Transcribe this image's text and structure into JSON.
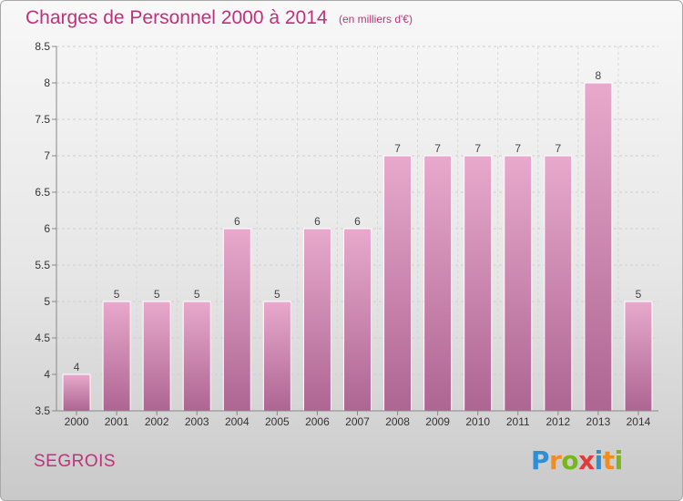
{
  "header": {
    "title": "Charges de Personnel 2000 à 2014",
    "unit": "(en milliers d'€)"
  },
  "footer": {
    "commune": "SEGROIS",
    "logo_letters": [
      "P",
      "r",
      "o",
      "x",
      "i",
      "t",
      "i"
    ],
    "logo_colors": [
      "#2e8ed6",
      "#f28c1e",
      "#7ab51d",
      "#e03a3a",
      "#2e8ed6",
      "#f28c1e",
      "#7ab51d"
    ]
  },
  "chart_data": {
    "type": "bar",
    "categories": [
      "2000",
      "2001",
      "2002",
      "2003",
      "2004",
      "2005",
      "2006",
      "2007",
      "2008",
      "2009",
      "2010",
      "2011",
      "2012",
      "2013",
      "2014"
    ],
    "values": [
      4,
      5,
      5,
      5,
      6,
      5,
      6,
      6,
      7,
      7,
      7,
      7,
      7,
      8,
      5
    ],
    "value_labels": [
      "4",
      "5",
      "5",
      "5",
      "6",
      "5",
      "6",
      "6",
      "7",
      "7",
      "7",
      "7",
      "7",
      "8",
      "5"
    ],
    "yticks": [
      3.5,
      4,
      4.5,
      5,
      5.5,
      6,
      6.5,
      7,
      7.5,
      8,
      8.5
    ],
    "ytick_labels": [
      "3.5",
      "4",
      "4.5",
      "5",
      "5.5",
      "6",
      "6.5",
      "7",
      "7.5",
      "8",
      "8.5"
    ],
    "ylim": [
      3.5,
      8.5
    ],
    "grid": true,
    "bar_color": "#d98bb5"
  }
}
